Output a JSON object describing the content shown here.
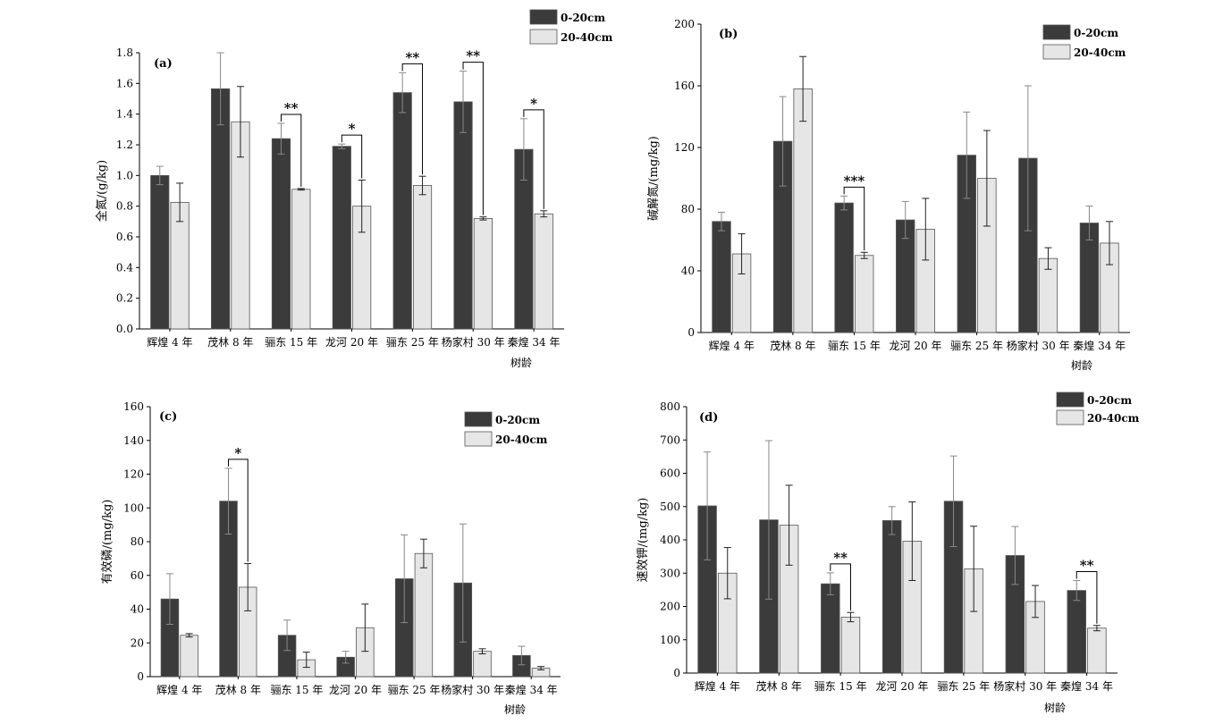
{
  "legend_labels": [
    "0-20cm",
    "20-40cm"
  ],
  "series_colors": [
    "#3b3b3b",
    "#e6e6e6"
  ],
  "chart_data": [
    {
      "type": "bar",
      "panel_label": "(a)",
      "ylabel": "全氮/(g/kg)",
      "xlabel": "树龄",
      "categories": [
        "辉煌 4 年",
        "茂林 8 年",
        "骊东 15 年",
        "龙河 20 年",
        "骊东 25 年",
        "杨家村 30 年",
        "秦煌 34 年"
      ],
      "ylim": [
        0,
        1.8
      ],
      "yticks": [
        "0.0",
        "0.2",
        "0.4",
        "0.6",
        "0.8",
        "1.0",
        "1.2",
        "1.4",
        "1.6",
        "1.8"
      ],
      "legend_position": "top-right",
      "series": [
        {
          "name": "0-20cm",
          "values": [
            1.0,
            1.565,
            1.24,
            1.19,
            1.54,
            1.48,
            1.17
          ],
          "errors": [
            0.06,
            0.235,
            0.1,
            0.015,
            0.13,
            0.2,
            0.2
          ]
        },
        {
          "name": "20-40cm",
          "values": [
            0.825,
            1.35,
            0.91,
            0.8,
            0.935,
            0.72,
            0.75
          ],
          "errors": [
            0.125,
            0.23,
            0.005,
            0.17,
            0.06,
            0.01,
            0.02
          ]
        }
      ],
      "significance": [
        {
          "category_index": 2,
          "label": "**"
        },
        {
          "category_index": 3,
          "label": "*"
        },
        {
          "category_index": 4,
          "label": "**"
        },
        {
          "category_index": 5,
          "label": "**"
        },
        {
          "category_index": 6,
          "label": "*"
        }
      ]
    },
    {
      "type": "bar",
      "panel_label": "(b)",
      "ylabel": "碱解氮/(mg/kg)",
      "xlabel": "树龄",
      "categories": [
        "辉煌 4 年",
        "茂林 8 年",
        "骊东 15 年",
        "龙河 20 年",
        "骊东 25 年",
        "杨家村 30 年",
        "秦煌 34 年"
      ],
      "ylim": [
        0,
        200
      ],
      "yticks": [
        "0",
        "40",
        "80",
        "120",
        "160",
        "200"
      ],
      "legend_position": "top-right",
      "series": [
        {
          "name": "0-20cm",
          "values": [
            72,
            124,
            84,
            73,
            115,
            113,
            71
          ],
          "errors": [
            6,
            29,
            4.5,
            12,
            28,
            47,
            11
          ]
        },
        {
          "name": "20-40cm",
          "values": [
            51,
            158,
            50,
            67,
            100,
            48,
            58
          ],
          "errors": [
            13,
            21,
            2,
            20,
            31,
            7,
            14
          ]
        }
      ],
      "significance": [
        {
          "category_index": 2,
          "label": "***"
        }
      ]
    },
    {
      "type": "bar",
      "panel_label": "(c)",
      "ylabel": "有效磷/(mg/kg)",
      "xlabel": "树龄",
      "categories": [
        "辉煌 4 年",
        "茂林 8 年",
        "骊东 15 年",
        "龙河 20 年",
        "骊东 25 年",
        "杨家村 30 年",
        "秦煌 34 年"
      ],
      "ylim": [
        0,
        160
      ],
      "yticks": [
        "0",
        "20",
        "40",
        "60",
        "80",
        "100",
        "120",
        "140",
        "160"
      ],
      "legend_position": "top-right",
      "series": [
        {
          "name": "0-20cm",
          "values": [
            46,
            104,
            24.5,
            11.5,
            58,
            55.5,
            12.5
          ],
          "errors": [
            15,
            19.5,
            9,
            3.5,
            26,
            35,
            5.5
          ]
        },
        {
          "name": "20-40cm",
          "values": [
            24.5,
            53,
            10,
            29,
            73,
            15,
            5
          ],
          "errors": [
            1,
            14,
            4.5,
            14,
            8.5,
            1.5,
            1
          ]
        }
      ],
      "significance": [
        {
          "category_index": 1,
          "label": "*"
        }
      ]
    },
    {
      "type": "bar",
      "panel_label": "(d)",
      "ylabel": "速效钾/(mg/kg)",
      "xlabel": "树龄",
      "categories": [
        "辉煌 4 年",
        "茂林 8 年",
        "骊东 15 年",
        "龙河 20 年",
        "骊东 25 年",
        "杨家村 30 年",
        "秦煌 34 年"
      ],
      "ylim": [
        0,
        800
      ],
      "yticks": [
        "0",
        "100",
        "200",
        "300",
        "400",
        "500",
        "600",
        "700",
        "800"
      ],
      "legend_position": "top-right",
      "series": [
        {
          "name": "0-20cm",
          "values": [
            502,
            460,
            268,
            458,
            516,
            353,
            248
          ],
          "errors": [
            162,
            238,
            33,
            42,
            136,
            87,
            30
          ]
        },
        {
          "name": "20-40cm",
          "values": [
            300,
            444,
            168,
            396,
            313,
            215,
            135
          ],
          "errors": [
            77,
            120,
            14,
            118,
            128,
            48,
            8
          ]
        }
      ],
      "significance": [
        {
          "category_index": 2,
          "label": "**"
        },
        {
          "category_index": 6,
          "label": "**"
        }
      ]
    }
  ]
}
